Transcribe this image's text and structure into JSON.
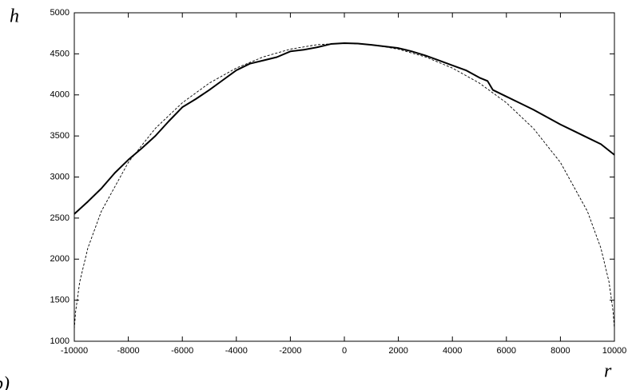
{
  "chart_data": {
    "type": "line",
    "y_label": "h",
    "x_label": "r",
    "panel_label": "b)",
    "xlim": [
      -10000,
      10000
    ],
    "ylim": [
      1000,
      5000
    ],
    "xticks": [
      -10000,
      -8000,
      -6000,
      -4000,
      -2000,
      0,
      2000,
      4000,
      6000,
      8000,
      10000
    ],
    "yticks": [
      1000,
      1500,
      2000,
      2500,
      3000,
      3500,
      4000,
      4500,
      5000
    ],
    "grid": false,
    "series": [
      {
        "color": "#000000",
        "style": "solid",
        "x": [
          -10000,
          -9500,
          -9000,
          -8500,
          -8000,
          -7500,
          -7000,
          -6500,
          -6000,
          -5500,
          -5000,
          -4500,
          -4000,
          -3500,
          -3000,
          -2500,
          -2000,
          -1500,
          -1000,
          -500,
          0,
          500,
          1000,
          1500,
          2000,
          2500,
          3000,
          3500,
          4000,
          4500,
          5000,
          5300,
          5500,
          6000,
          6500,
          7000,
          7500,
          8000,
          8500,
          9000,
          9500,
          10000
        ],
        "values": [
          2550,
          2700,
          2860,
          3050,
          3210,
          3350,
          3500,
          3680,
          3850,
          3950,
          4060,
          4180,
          4300,
          4380,
          4420,
          4460,
          4530,
          4550,
          4580,
          4620,
          4630,
          4625,
          4610,
          4590,
          4570,
          4530,
          4480,
          4420,
          4360,
          4300,
          4210,
          4170,
          4060,
          3980,
          3900,
          3820,
          3730,
          3640,
          3560,
          3480,
          3400,
          3270
        ]
      },
      {
        "color": "#000000",
        "style": "dashed",
        "x": [
          -10000,
          -9950,
          -9800,
          -9500,
          -9000,
          -8000,
          -7000,
          -6000,
          -5000,
          -4000,
          -3000,
          -2000,
          -1000,
          0,
          1000,
          2000,
          3000,
          4000,
          5000,
          6000,
          7000,
          8000,
          9000,
          9500,
          9800,
          9950,
          10000
        ],
        "values": [
          1150,
          1363,
          1722,
          2133,
          2582,
          3178,
          3592,
          3904,
          4144,
          4327,
          4463,
          4557,
          4612,
          4630,
          4612,
          4557,
          4463,
          4327,
          4144,
          3904,
          3592,
          3178,
          2582,
          2133,
          1722,
          1363,
          1150
        ]
      }
    ]
  }
}
